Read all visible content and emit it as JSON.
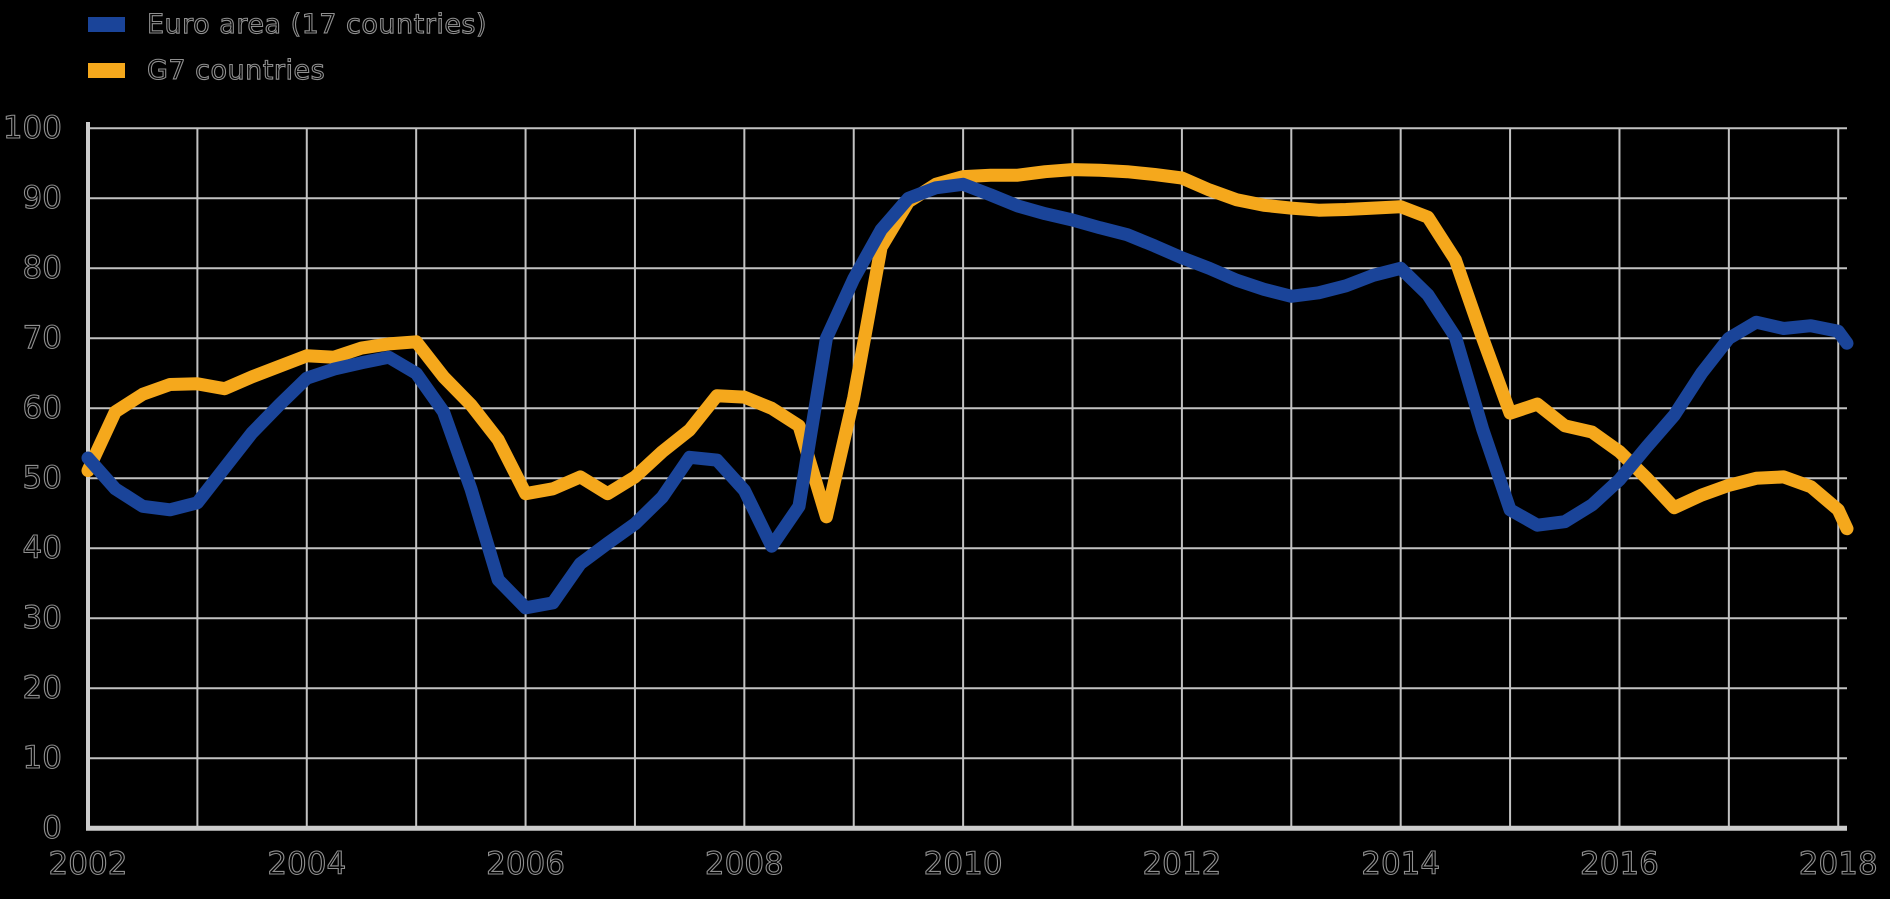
{
  "legend": {
    "items": [
      {
        "label": "Euro area (17 countries)",
        "color": "#1a4499"
      },
      {
        "label": "G7 countries",
        "color": "#f5a81c"
      }
    ]
  },
  "styles": {
    "background": "#000000",
    "gridline_color": "#c2c2c2",
    "axis_color": "#cccccc",
    "text_outline_color": "#8f8f8f"
  },
  "chart_data": {
    "type": "line",
    "xlabel": "",
    "ylabel": "",
    "grid": true,
    "legend_position": "top-left",
    "x_axis": {
      "tick_labels": [
        "2002",
        "2004",
        "2006",
        "2008",
        "2010",
        "2012",
        "2014",
        "2016",
        "2018"
      ],
      "minor_grid_every_years": 1,
      "range": [
        2002,
        2018.08
      ]
    },
    "y_axis": {
      "tick_labels": [
        "0",
        "10",
        "20",
        "30",
        "40",
        "50",
        "60",
        "70",
        "80",
        "90",
        "100"
      ],
      "range": [
        0,
        100
      ]
    },
    "series": [
      {
        "name": "G7 countries",
        "color": "#f5a81c",
        "points": [
          [
            2002.0,
            51.1
          ],
          [
            2002.25,
            59.5
          ],
          [
            2002.5,
            62.0
          ],
          [
            2002.75,
            63.4
          ],
          [
            2003.0,
            63.5
          ],
          [
            2003.25,
            62.8
          ],
          [
            2003.5,
            64.5
          ],
          [
            2003.75,
            66.0
          ],
          [
            2004.0,
            67.5
          ],
          [
            2004.25,
            67.3
          ],
          [
            2004.5,
            68.6
          ],
          [
            2004.75,
            69.2
          ],
          [
            2005.0,
            69.5
          ],
          [
            2005.25,
            64.5
          ],
          [
            2005.5,
            60.5
          ],
          [
            2005.75,
            55.5
          ],
          [
            2006.0,
            47.8
          ],
          [
            2006.25,
            48.5
          ],
          [
            2006.5,
            50.2
          ],
          [
            2006.75,
            47.8
          ],
          [
            2007.0,
            50.2
          ],
          [
            2007.25,
            53.8
          ],
          [
            2007.5,
            56.9
          ],
          [
            2007.75,
            61.8
          ],
          [
            2008.0,
            61.6
          ],
          [
            2008.25,
            60.0
          ],
          [
            2008.5,
            57.5
          ],
          [
            2008.75,
            44.5
          ],
          [
            2009.0,
            61.5
          ],
          [
            2009.25,
            83.0
          ],
          [
            2009.5,
            89.5
          ],
          [
            2009.75,
            92.0
          ],
          [
            2010.0,
            93.1
          ],
          [
            2010.25,
            93.3
          ],
          [
            2010.5,
            93.3
          ],
          [
            2010.75,
            93.8
          ],
          [
            2011.0,
            94.1
          ],
          [
            2011.25,
            94.0
          ],
          [
            2011.5,
            93.8
          ],
          [
            2011.75,
            93.4
          ],
          [
            2012.0,
            92.9
          ],
          [
            2012.25,
            91.2
          ],
          [
            2012.5,
            89.8
          ],
          [
            2012.75,
            89.0
          ],
          [
            2013.0,
            88.6
          ],
          [
            2013.25,
            88.3
          ],
          [
            2013.5,
            88.4
          ],
          [
            2013.75,
            88.6
          ],
          [
            2014.0,
            88.8
          ],
          [
            2014.25,
            87.3
          ],
          [
            2014.5,
            81.2
          ],
          [
            2014.75,
            70.0
          ],
          [
            2015.0,
            59.3
          ],
          [
            2015.25,
            60.6
          ],
          [
            2015.5,
            57.5
          ],
          [
            2015.75,
            56.6
          ],
          [
            2016.0,
            53.8
          ],
          [
            2016.25,
            50.0
          ],
          [
            2016.5,
            45.8
          ],
          [
            2016.75,
            47.6
          ],
          [
            2017.0,
            49.0
          ],
          [
            2017.25,
            50.0
          ],
          [
            2017.5,
            50.2
          ],
          [
            2017.75,
            48.8
          ],
          [
            2018.0,
            45.5
          ],
          [
            2018.08,
            42.8
          ]
        ]
      },
      {
        "name": "Euro area (17 countries)",
        "color": "#1a4499",
        "points": [
          [
            2002.0,
            52.9
          ],
          [
            2002.25,
            48.5
          ],
          [
            2002.5,
            46.0
          ],
          [
            2002.75,
            45.5
          ],
          [
            2003.0,
            46.5
          ],
          [
            2003.25,
            51.5
          ],
          [
            2003.5,
            56.5
          ],
          [
            2003.75,
            60.5
          ],
          [
            2004.0,
            64.3
          ],
          [
            2004.25,
            65.6
          ],
          [
            2004.5,
            66.5
          ],
          [
            2004.75,
            67.3
          ],
          [
            2005.0,
            65.0
          ],
          [
            2005.25,
            59.5
          ],
          [
            2005.5,
            48.5
          ],
          [
            2005.75,
            35.5
          ],
          [
            2006.0,
            31.5
          ],
          [
            2006.25,
            32.2
          ],
          [
            2006.5,
            37.8
          ],
          [
            2006.75,
            40.7
          ],
          [
            2007.0,
            43.5
          ],
          [
            2007.25,
            47.3
          ],
          [
            2007.5,
            53.0
          ],
          [
            2007.75,
            52.6
          ],
          [
            2008.0,
            48.3
          ],
          [
            2008.25,
            40.3
          ],
          [
            2008.5,
            46.0
          ],
          [
            2008.75,
            70.0
          ],
          [
            2009.0,
            78.5
          ],
          [
            2009.25,
            85.5
          ],
          [
            2009.5,
            90.0
          ],
          [
            2009.75,
            91.5
          ],
          [
            2010.0,
            92.0
          ],
          [
            2010.25,
            90.5
          ],
          [
            2010.5,
            88.9
          ],
          [
            2010.75,
            87.8
          ],
          [
            2011.0,
            86.9
          ],
          [
            2011.25,
            85.8
          ],
          [
            2011.5,
            84.8
          ],
          [
            2011.75,
            83.2
          ],
          [
            2012.0,
            81.5
          ],
          [
            2012.25,
            80.0
          ],
          [
            2012.5,
            78.3
          ],
          [
            2012.75,
            77.0
          ],
          [
            2013.0,
            76.0
          ],
          [
            2013.25,
            76.5
          ],
          [
            2013.5,
            77.5
          ],
          [
            2013.75,
            79.0
          ],
          [
            2014.0,
            80.0
          ],
          [
            2014.25,
            76.2
          ],
          [
            2014.5,
            70.2
          ],
          [
            2014.75,
            57.0
          ],
          [
            2015.0,
            45.5
          ],
          [
            2015.25,
            43.3
          ],
          [
            2015.5,
            43.8
          ],
          [
            2015.75,
            46.2
          ],
          [
            2016.0,
            49.8
          ],
          [
            2016.25,
            54.5
          ],
          [
            2016.5,
            59.0
          ],
          [
            2016.75,
            65.0
          ],
          [
            2017.0,
            70.0
          ],
          [
            2017.25,
            72.3
          ],
          [
            2017.5,
            71.4
          ],
          [
            2017.75,
            71.8
          ],
          [
            2018.0,
            71.0
          ],
          [
            2018.08,
            69.3
          ]
        ]
      }
    ]
  }
}
